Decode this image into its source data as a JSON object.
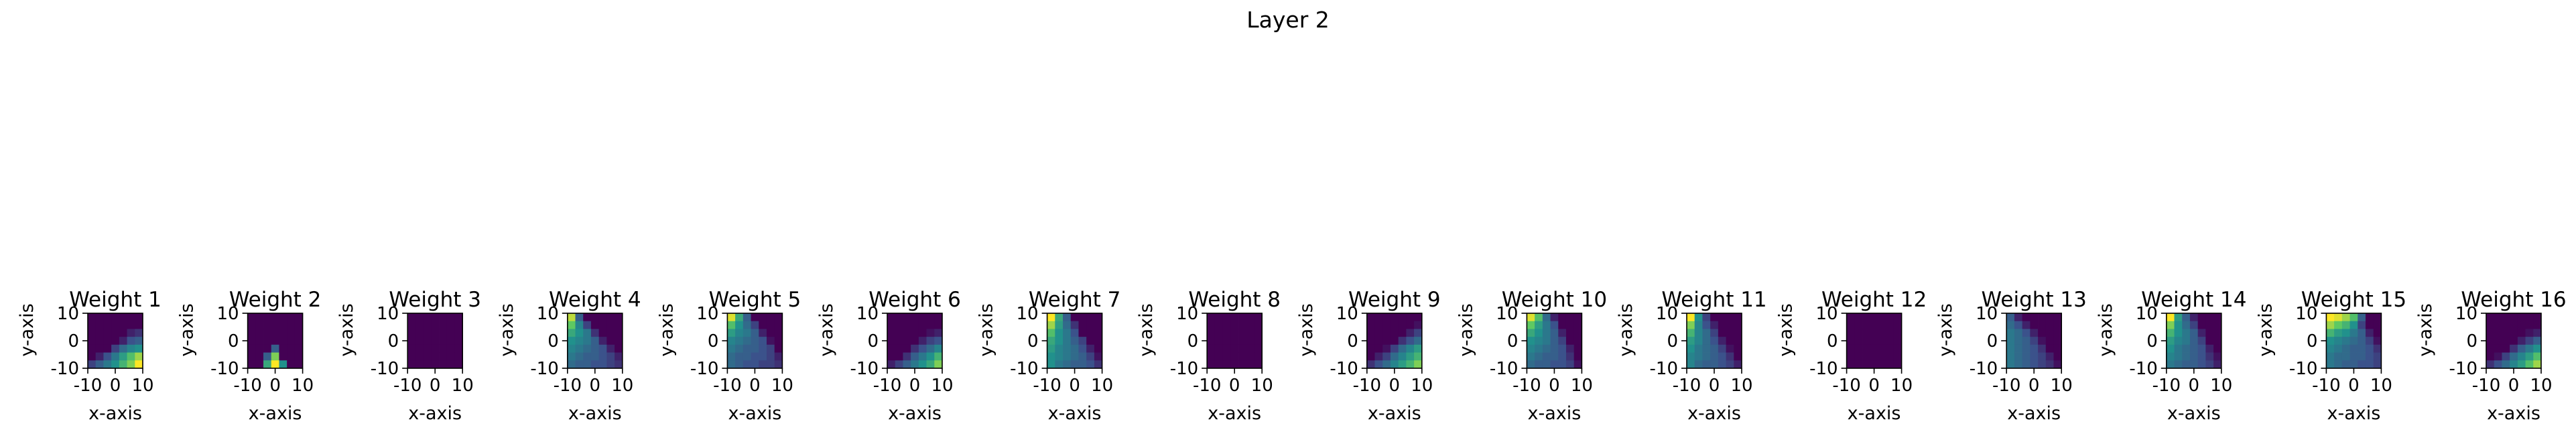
{
  "figure": {
    "title": "Layer 2"
  },
  "colormap": [
    "#440154",
    "#3b528b",
    "#21918c",
    "#5ec962",
    "#fde725"
  ],
  "chart_data": {
    "type": "heatmap",
    "xlabel": "x-axis",
    "ylabel": "y-axis",
    "xlim": [
      -10,
      10
    ],
    "ylim": [
      -10,
      10
    ],
    "xticks": [
      "-10",
      "0",
      "10"
    ],
    "yticks": [
      "-10",
      "0",
      "10"
    ],
    "panels": [
      {
        "title": "Weight 1",
        "values": [
          [
            0,
            0,
            0,
            0,
            0,
            0,
            0
          ],
          [
            0,
            0,
            0,
            0,
            0,
            0,
            0
          ],
          [
            0,
            0,
            0,
            0,
            0,
            0.1,
            0.15
          ],
          [
            0,
            0,
            0,
            0,
            0.1,
            0.25,
            0.3
          ],
          [
            0,
            0,
            0,
            0.2,
            0.35,
            0.45,
            0.5
          ],
          [
            0,
            0.1,
            0.25,
            0.4,
            0.55,
            0.7,
            0.85
          ],
          [
            0.2,
            0.3,
            0.4,
            0.5,
            0.65,
            0.8,
            1.0
          ]
        ]
      },
      {
        "title": "Weight 2",
        "values": [
          [
            0,
            0,
            0,
            0,
            0,
            0,
            0
          ],
          [
            0,
            0,
            0,
            0,
            0,
            0,
            0
          ],
          [
            0,
            0,
            0,
            0,
            0,
            0,
            0
          ],
          [
            0,
            0,
            0,
            0,
            0,
            0,
            0
          ],
          [
            0,
            0,
            0,
            0.3,
            0,
            0,
            0
          ],
          [
            0,
            0,
            0.3,
            0.8,
            0,
            0,
            0
          ],
          [
            0,
            0,
            0.6,
            1.0,
            0.5,
            0,
            0
          ]
        ]
      },
      {
        "title": "Weight 3",
        "values": [
          [
            0,
            0,
            0,
            0,
            0,
            0,
            0
          ],
          [
            0,
            0,
            0,
            0,
            0,
            0,
            0
          ],
          [
            0,
            0,
            0,
            0,
            0,
            0,
            0
          ],
          [
            0,
            0,
            0,
            0,
            0,
            0,
            0
          ],
          [
            0,
            0,
            0,
            0,
            0,
            0,
            0
          ],
          [
            0,
            0,
            0,
            0,
            0,
            0,
            0
          ],
          [
            0,
            0,
            0,
            0,
            0,
            0,
            0
          ]
        ]
      },
      {
        "title": "Weight 4",
        "values": [
          [
            0.9,
            0.3,
            0,
            0,
            0,
            0,
            0
          ],
          [
            0.75,
            0.45,
            0.2,
            0,
            0,
            0,
            0
          ],
          [
            0.6,
            0.5,
            0.4,
            0.15,
            0,
            0,
            0
          ],
          [
            0.5,
            0.45,
            0.4,
            0.3,
            0.1,
            0,
            0
          ],
          [
            0.45,
            0.4,
            0.35,
            0.3,
            0.25,
            0.1,
            0
          ],
          [
            0.4,
            0.35,
            0.3,
            0.3,
            0.25,
            0.2,
            0.1
          ],
          [
            0.35,
            0.3,
            0.3,
            0.25,
            0.25,
            0.2,
            0.15
          ]
        ]
      },
      {
        "title": "Weight 5",
        "values": [
          [
            0.95,
            0.6,
            0.3,
            0,
            0,
            0,
            0
          ],
          [
            0.7,
            0.5,
            0.35,
            0.2,
            0,
            0,
            0
          ],
          [
            0.55,
            0.45,
            0.4,
            0.3,
            0.1,
            0,
            0
          ],
          [
            0.45,
            0.4,
            0.35,
            0.3,
            0.25,
            0.05,
            0
          ],
          [
            0.4,
            0.35,
            0.3,
            0.3,
            0.25,
            0.2,
            0
          ],
          [
            0.35,
            0.3,
            0.3,
            0.25,
            0.25,
            0.2,
            0.1
          ],
          [
            0.35,
            0.3,
            0.25,
            0.25,
            0.2,
            0.2,
            0.15
          ]
        ]
      },
      {
        "title": "Weight 6",
        "values": [
          [
            0,
            0,
            0,
            0,
            0,
            0,
            0
          ],
          [
            0,
            0,
            0,
            0,
            0,
            0,
            0
          ],
          [
            0,
            0,
            0,
            0,
            0,
            0.05,
            0.1
          ],
          [
            0,
            0,
            0,
            0,
            0.1,
            0.2,
            0.25
          ],
          [
            0,
            0,
            0,
            0.15,
            0.25,
            0.35,
            0.45
          ],
          [
            0,
            0,
            0.15,
            0.3,
            0.4,
            0.5,
            0.65
          ],
          [
            0.1,
            0.2,
            0.3,
            0.4,
            0.5,
            0.6,
            0.8
          ]
        ]
      },
      {
        "title": "Weight 7",
        "values": [
          [
            1.0,
            0.6,
            0.3,
            0,
            0,
            0,
            0
          ],
          [
            0.85,
            0.55,
            0.35,
            0.15,
            0,
            0,
            0
          ],
          [
            0.7,
            0.5,
            0.4,
            0.25,
            0,
            0,
            0
          ],
          [
            0.6,
            0.5,
            0.4,
            0.3,
            0.2,
            0,
            0
          ],
          [
            0.55,
            0.45,
            0.4,
            0.35,
            0.25,
            0.1,
            0
          ],
          [
            0.5,
            0.45,
            0.4,
            0.35,
            0.3,
            0.2,
            0.05
          ],
          [
            0.5,
            0.4,
            0.35,
            0.3,
            0.3,
            0.25,
            0.15
          ]
        ]
      },
      {
        "title": "Weight 8",
        "values": [
          [
            0,
            0,
            0,
            0,
            0,
            0,
            0
          ],
          [
            0,
            0,
            0,
            0,
            0,
            0,
            0
          ],
          [
            0,
            0,
            0,
            0,
            0,
            0,
            0
          ],
          [
            0,
            0,
            0,
            0,
            0,
            0,
            0
          ],
          [
            0,
            0,
            0,
            0,
            0,
            0,
            0
          ],
          [
            0,
            0,
            0,
            0,
            0,
            0,
            0
          ],
          [
            0,
            0,
            0,
            0,
            0,
            0,
            0
          ]
        ]
      },
      {
        "title": "Weight 9",
        "values": [
          [
            0,
            0,
            0,
            0,
            0,
            0,
            0
          ],
          [
            0,
            0,
            0,
            0,
            0,
            0,
            0.05
          ],
          [
            0,
            0,
            0,
            0,
            0,
            0.1,
            0.2
          ],
          [
            0,
            0,
            0,
            0,
            0.15,
            0.25,
            0.35
          ],
          [
            0,
            0,
            0.05,
            0.2,
            0.35,
            0.45,
            0.55
          ],
          [
            0,
            0.1,
            0.2,
            0.35,
            0.45,
            0.55,
            0.65
          ],
          [
            0.15,
            0.25,
            0.35,
            0.45,
            0.55,
            0.65,
            0.8
          ]
        ]
      },
      {
        "title": "Weight 10",
        "values": [
          [
            0.95,
            0.7,
            0.35,
            0.1,
            0,
            0,
            0
          ],
          [
            0.75,
            0.55,
            0.4,
            0.25,
            0,
            0,
            0
          ],
          [
            0.6,
            0.5,
            0.4,
            0.3,
            0.1,
            0,
            0
          ],
          [
            0.5,
            0.45,
            0.4,
            0.3,
            0.2,
            0,
            0
          ],
          [
            0.45,
            0.4,
            0.35,
            0.3,
            0.25,
            0.1,
            0
          ],
          [
            0.4,
            0.35,
            0.3,
            0.3,
            0.25,
            0.15,
            0
          ],
          [
            0.35,
            0.3,
            0.3,
            0.25,
            0.25,
            0.2,
            0.05
          ]
        ]
      },
      {
        "title": "Weight 11",
        "values": [
          [
            1.0,
            0.5,
            0.2,
            0,
            0,
            0,
            0
          ],
          [
            0.8,
            0.45,
            0.25,
            0.1,
            0,
            0,
            0
          ],
          [
            0.65,
            0.45,
            0.35,
            0.2,
            0,
            0,
            0
          ],
          [
            0.55,
            0.45,
            0.35,
            0.25,
            0.1,
            0,
            0
          ],
          [
            0.5,
            0.4,
            0.35,
            0.3,
            0.2,
            0.05,
            0
          ],
          [
            0.45,
            0.4,
            0.35,
            0.3,
            0.25,
            0.15,
            0
          ],
          [
            0.45,
            0.35,
            0.3,
            0.3,
            0.25,
            0.2,
            0.1
          ]
        ]
      },
      {
        "title": "Weight 12",
        "values": [
          [
            0,
            0,
            0,
            0,
            0,
            0,
            0
          ],
          [
            0,
            0,
            0,
            0,
            0,
            0,
            0
          ],
          [
            0,
            0,
            0,
            0,
            0,
            0,
            0
          ],
          [
            0,
            0,
            0,
            0,
            0,
            0,
            0
          ],
          [
            0,
            0,
            0,
            0,
            0,
            0,
            0
          ],
          [
            0,
            0,
            0,
            0,
            0,
            0,
            0
          ],
          [
            0,
            0,
            0,
            0,
            0,
            0,
            0
          ]
        ]
      },
      {
        "title": "Weight 13",
        "values": [
          [
            0.3,
            0.1,
            0,
            0,
            0,
            0,
            0
          ],
          [
            0.35,
            0.25,
            0.1,
            0,
            0,
            0,
            0
          ],
          [
            0.4,
            0.35,
            0.25,
            0.1,
            0,
            0,
            0
          ],
          [
            0.4,
            0.35,
            0.3,
            0.2,
            0.05,
            0,
            0
          ],
          [
            0.4,
            0.35,
            0.3,
            0.25,
            0.15,
            0,
            0
          ],
          [
            0.4,
            0.35,
            0.3,
            0.25,
            0.2,
            0.1,
            0
          ],
          [
            0.4,
            0.35,
            0.3,
            0.25,
            0.2,
            0.15,
            0.05
          ]
        ]
      },
      {
        "title": "Weight 14",
        "values": [
          [
            1.0,
            0.55,
            0.3,
            0.1,
            0,
            0,
            0
          ],
          [
            0.8,
            0.5,
            0.35,
            0.2,
            0,
            0,
            0
          ],
          [
            0.65,
            0.5,
            0.4,
            0.3,
            0.1,
            0,
            0
          ],
          [
            0.55,
            0.45,
            0.4,
            0.3,
            0.2,
            0,
            0
          ],
          [
            0.5,
            0.4,
            0.35,
            0.3,
            0.25,
            0.1,
            0
          ],
          [
            0.45,
            0.4,
            0.35,
            0.3,
            0.25,
            0.15,
            0.05
          ],
          [
            0.4,
            0.35,
            0.3,
            0.3,
            0.25,
            0.2,
            0.1
          ]
        ]
      },
      {
        "title": "Weight 15",
        "values": [
          [
            1.0,
            0.95,
            0.85,
            0.7,
            0.3,
            0,
            0
          ],
          [
            0.85,
            0.75,
            0.65,
            0.5,
            0.2,
            0,
            0
          ],
          [
            0.65,
            0.55,
            0.5,
            0.4,
            0.3,
            0.1,
            0
          ],
          [
            0.5,
            0.45,
            0.4,
            0.35,
            0.3,
            0.2,
            0.05
          ],
          [
            0.45,
            0.4,
            0.35,
            0.3,
            0.3,
            0.25,
            0.15
          ],
          [
            0.4,
            0.35,
            0.35,
            0.3,
            0.3,
            0.25,
            0.2
          ],
          [
            0.4,
            0.35,
            0.3,
            0.3,
            0.25,
            0.25,
            0.2
          ]
        ]
      },
      {
        "title": "Weight 16",
        "values": [
          [
            0,
            0,
            0,
            0,
            0,
            0,
            0
          ],
          [
            0,
            0,
            0,
            0,
            0,
            0,
            0
          ],
          [
            0,
            0,
            0,
            0,
            0,
            0.05,
            0.1
          ],
          [
            0,
            0,
            0,
            0,
            0.1,
            0.2,
            0.3
          ],
          [
            0,
            0,
            0,
            0.15,
            0.3,
            0.4,
            0.5
          ],
          [
            0,
            0.05,
            0.2,
            0.35,
            0.45,
            0.55,
            0.7
          ],
          [
            0.15,
            0.25,
            0.35,
            0.45,
            0.55,
            0.7,
            0.85
          ]
        ]
      }
    ]
  }
}
